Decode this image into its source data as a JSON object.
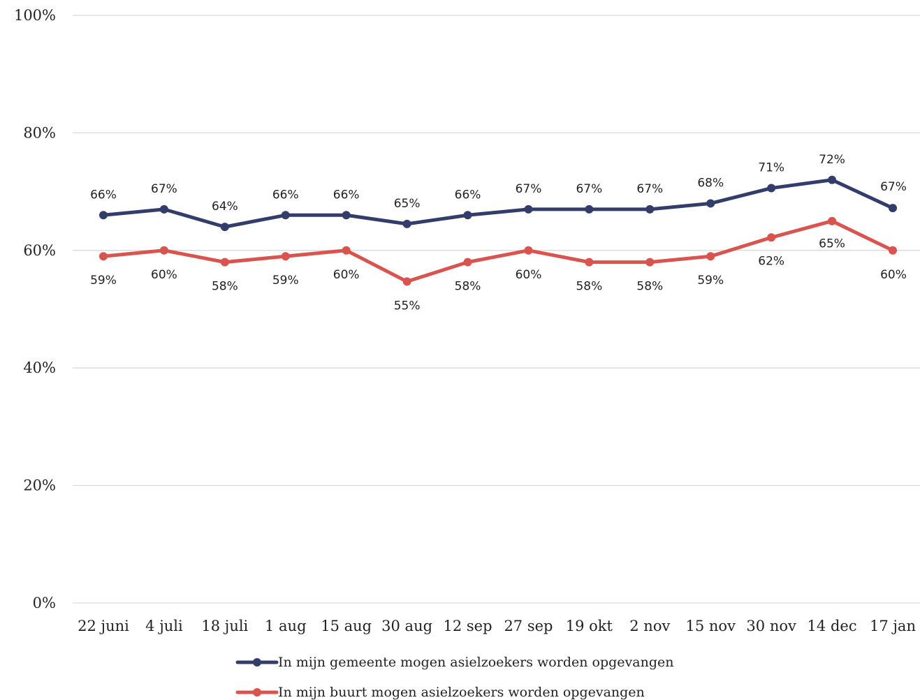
{
  "chart_data": {
    "type": "line",
    "title": "",
    "xlabel": "",
    "ylabel": "",
    "categories": [
      "22 juni",
      "4 juli",
      "18 juli",
      "1 aug",
      "15 aug",
      "30 aug",
      "12 sep",
      "27 sep",
      "19 okt",
      "2 nov",
      "15 nov",
      "30 nov",
      "14 dec",
      "17 jan"
    ],
    "ylim": [
      0,
      100
    ],
    "yticks": [
      0,
      20,
      40,
      60,
      80,
      100
    ],
    "ytick_labels": [
      "0%",
      "20%",
      "40%",
      "60%",
      "80%",
      "100%"
    ],
    "grid": true,
    "legend_position": "bottom",
    "series": [
      {
        "name": "In mijn gemeente mogen asielzoekers worden opgevangen",
        "color": "#333d6b",
        "values": [
          66,
          67,
          64,
          66,
          66,
          64.5,
          66,
          67,
          67,
          67,
          68,
          70.6,
          72,
          67.2
        ],
        "labels": [
          "66%",
          "67%",
          "64%",
          "66%",
          "66%",
          "65%",
          "66%",
          "67%",
          "67%",
          "67%",
          "68%",
          "71%",
          "72%",
          "67%"
        ]
      },
      {
        "name": "In mijn buurt mogen asielzoekers worden opgevangen",
        "color": "#d9534f",
        "values": [
          59,
          60,
          58,
          59,
          60,
          54.7,
          58,
          60,
          58,
          58,
          59,
          62.2,
          65,
          60
        ],
        "labels": [
          "59%",
          "60%",
          "58%",
          "59%",
          "60%",
          "55%",
          "58%",
          "60%",
          "58%",
          "58%",
          "59%",
          "62%",
          "65%",
          "60%"
        ]
      }
    ]
  }
}
